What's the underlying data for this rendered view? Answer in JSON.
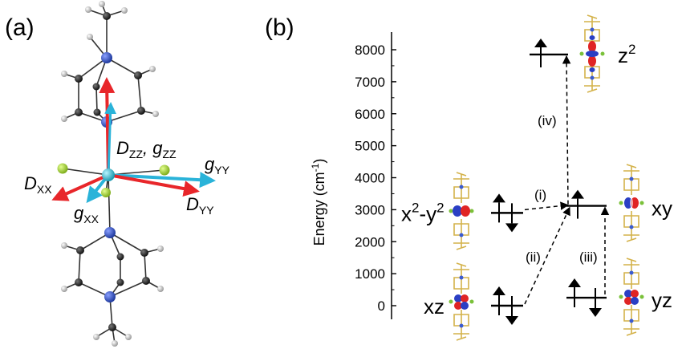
{
  "panel_a": {
    "label": "(a)",
    "tensor_labels": {
      "dzz_gzz": [
        "D",
        "ZZ",
        ", g",
        "ZZ"
      ],
      "gyy": [
        "g",
        "YY"
      ],
      "dxx": [
        "D",
        "XX"
      ],
      "dyy": [
        "D",
        "YY"
      ],
      "gxx": [
        "g",
        "XX"
      ]
    },
    "colors": {
      "D_axes": "#e8262a",
      "g_axes": "#2ab3d9",
      "metal": "#2bb3c9",
      "nitrogen": "#2c4bb0",
      "halide": "#9ccc2a",
      "carbon": "#222222",
      "hydrogen": "#bfbfbf"
    }
  },
  "panel_b": {
    "label": "(b)",
    "axis": {
      "title_main": "Energy (cm",
      "title_sup": "-1",
      "title_end": ")",
      "ylim": [
        -300,
        8600
      ],
      "ticks": [
        0,
        1000,
        2000,
        3000,
        4000,
        5000,
        6000,
        7000,
        8000
      ]
    },
    "levels": [
      {
        "name": "xz",
        "label_main": "xz",
        "label_sup": "",
        "energy": 0,
        "column": "left",
        "electrons": 2
      },
      {
        "name": "x2-y2",
        "label_main": "x",
        "label_sup": "2",
        "label_mid": "-y",
        "label_sup2": "2",
        "energy": 2900,
        "column": "left",
        "electrons": 2
      },
      {
        "name": "yz",
        "label_main": "yz",
        "label_sup": "",
        "energy": 250,
        "column": "right",
        "electrons": 2
      },
      {
        "name": "xy",
        "label_main": "xy",
        "label_sup": "",
        "energy": 3120,
        "column": "right",
        "electrons": 1
      },
      {
        "name": "z2",
        "label_main": "z",
        "label_sup": "2",
        "energy": 7850,
        "column": "top",
        "electrons": 1
      }
    ],
    "transitions": [
      {
        "label": "(i)",
        "from": "x2-y2",
        "to": "xy"
      },
      {
        "label": "(ii)",
        "from": "xz",
        "to": "xy"
      },
      {
        "label": "(iii)",
        "from": "yz",
        "to": "xy"
      },
      {
        "label": "(iv)",
        "from": "xy",
        "to": "z2"
      }
    ],
    "colors": {
      "lobe_positive": "#e02424",
      "lobe_negative": "#2a3fc4",
      "ligand": "#d4b24a"
    }
  }
}
